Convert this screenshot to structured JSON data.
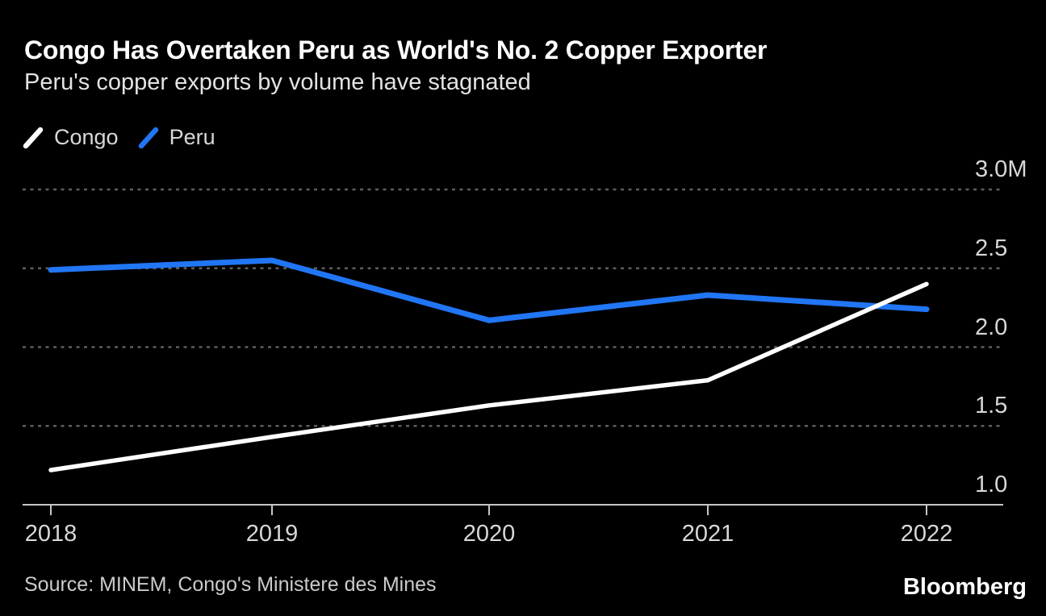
{
  "header": {
    "title": "Congo Has Overtaken Peru as World's No. 2 Copper Exporter",
    "subtitle": "Peru's copper exports by volume have stagnated"
  },
  "legend": [
    {
      "label": "Congo",
      "color": "#ffffff"
    },
    {
      "label": "Peru",
      "color": "#2176f5"
    }
  ],
  "chart_data": {
    "type": "line",
    "x": [
      2018,
      2019,
      2020,
      2021,
      2022
    ],
    "x_tick_labels": [
      "2018",
      "2019",
      "2020",
      "2021",
      "2022"
    ],
    "series": [
      {
        "name": "Congo",
        "color": "#ffffff",
        "values": [
          1.22,
          1.43,
          1.63,
          1.79,
          2.4
        ]
      },
      {
        "name": "Peru",
        "color": "#2176f5",
        "values": [
          2.49,
          2.55,
          2.17,
          2.33,
          2.24
        ]
      }
    ],
    "y_ticks": [
      "3.0M",
      "2.5",
      "2.0",
      "1.5",
      "1.0"
    ],
    "y_tick_values": [
      3.0,
      2.5,
      2.0,
      1.5,
      1.0
    ],
    "ylim": [
      1.0,
      3.0
    ],
    "title": "Congo Has Overtaken Peru as World's No. 2 Copper Exporter",
    "subtitle": "Peru's copper exports by volume have stagnated",
    "xlabel": "",
    "ylabel": "",
    "grid": "horizontal-dashed",
    "legend_position": "top-left"
  },
  "colors": {
    "background": "#000000",
    "congo_line": "#ffffff",
    "peru_line": "#2176f5",
    "gridline": "#5e5e5e",
    "axis": "#c6c6c6",
    "tick_label": "#d7d7d7",
    "title": "#ffffff",
    "subtitle": "#e3e3e3",
    "source": "#cbcbcb"
  },
  "footer": {
    "source": "Source: MINEM, Congo's Ministere des Mines",
    "brand": "Bloomberg"
  }
}
